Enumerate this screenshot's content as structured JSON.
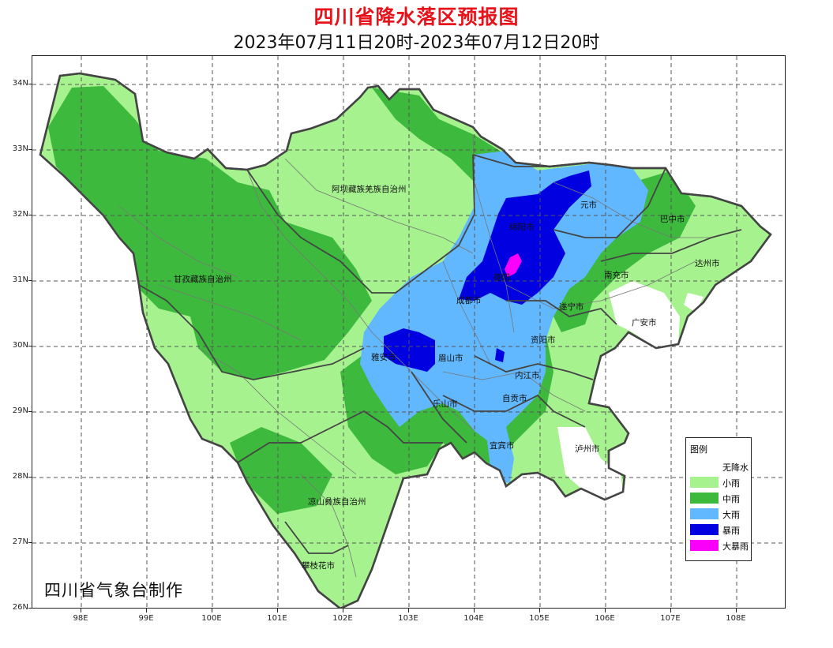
{
  "title": "四川省降水落区预报图",
  "subtitle": "2023年07月11日20时-2023年07月12日20时",
  "credit": "四川省气象台制作",
  "axes": {
    "lat_labels": [
      "34N",
      "33N",
      "32N",
      "31N",
      "30N",
      "29N",
      "28N",
      "27N",
      "26N"
    ],
    "lon_labels": [
      "98E",
      "99E",
      "100E",
      "101E",
      "102E",
      "103E",
      "104E",
      "105E",
      "106E",
      "107E",
      "108E"
    ]
  },
  "cities": {
    "aba": "阿坝藏族羌族自治州",
    "ganzi": "甘孜藏族自治州",
    "guangyuan": "元市",
    "bazhong": "巴中市",
    "mianyang": "绵阳市",
    "dazhou": "达州市",
    "nanchong": "南充市",
    "deyang": "德阳",
    "chengdu": "成都市",
    "suining": "遂宁市",
    "guangan": "广安市",
    "yaan": "雅安市",
    "meishan": "眉山市",
    "ziyang": "资阳市",
    "neijiang": "内江市",
    "zigong": "自贡市",
    "leshan": "乐山市",
    "yibin": "宜宾市",
    "luzhou": "泸州市",
    "liangshan": "凉山彝族自治州",
    "panzhihua": "攀枝花市"
  },
  "legend": {
    "title": "图例",
    "items": [
      {
        "label": "无降水",
        "color": "#ffffff"
      },
      {
        "label": "小雨",
        "color": "#a6f28f"
      },
      {
        "label": "中雨",
        "color": "#3dba3d"
      },
      {
        "label": "大雨",
        "color": "#61b8ff"
      },
      {
        "label": "暴雨",
        "color": "#0000e1"
      },
      {
        "label": "大暴雨",
        "color": "#fa00fa"
      }
    ]
  },
  "colors": {
    "title_red": "#e8121b",
    "light_rain": "#a6f28f",
    "moderate_rain": "#3dba3d",
    "heavy_rain": "#61b8ff",
    "rainstorm": "#0000e1",
    "heavy_rainstorm": "#fa00fa",
    "boundary": "#444444"
  }
}
